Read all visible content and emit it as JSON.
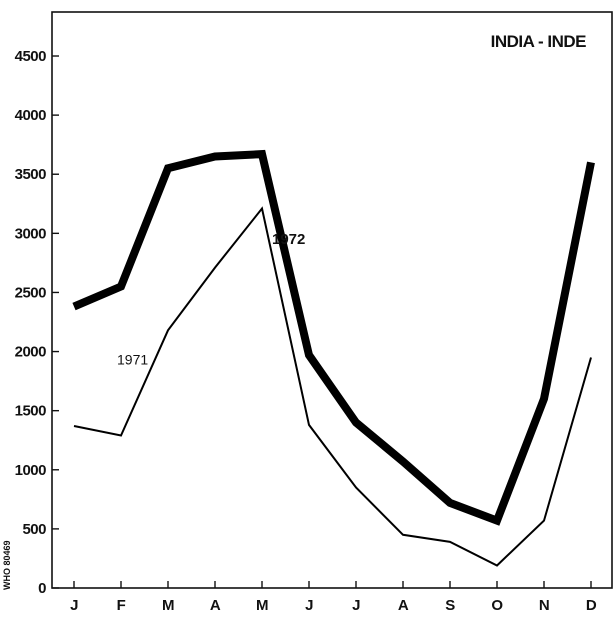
{
  "chart_data": {
    "type": "line",
    "title": "INDIA - INDE",
    "xlabel": "",
    "ylabel": "",
    "categories": [
      "J",
      "F",
      "M",
      "A",
      "M",
      "J",
      "J",
      "A",
      "S",
      "O",
      "N",
      "D"
    ],
    "ylim": [
      0,
      5000
    ],
    "yticks": [
      0,
      500,
      1000,
      1500,
      2000,
      2500,
      3000,
      3500,
      4000,
      4500
    ],
    "ytick_labels": [
      "0",
      "500",
      "1000",
      "1500",
      "2000",
      "2500",
      "3000",
      "3500",
      "4000",
      "4500"
    ],
    "grid": false,
    "series": [
      {
        "name": "1972",
        "values": [
          2380,
          2550,
          3550,
          3650,
          3670,
          1970,
          1400,
          1070,
          720,
          570,
          1600,
          3600
        ],
        "color": "#000000",
        "style": "thick"
      },
      {
        "name": "1971",
        "values": [
          1370,
          1290,
          2180,
          2710,
          3210,
          1380,
          850,
          450,
          390,
          190,
          570,
          1950
        ],
        "color": "#000000",
        "style": "thin"
      }
    ]
  },
  "side_mark": "WHO 80469"
}
